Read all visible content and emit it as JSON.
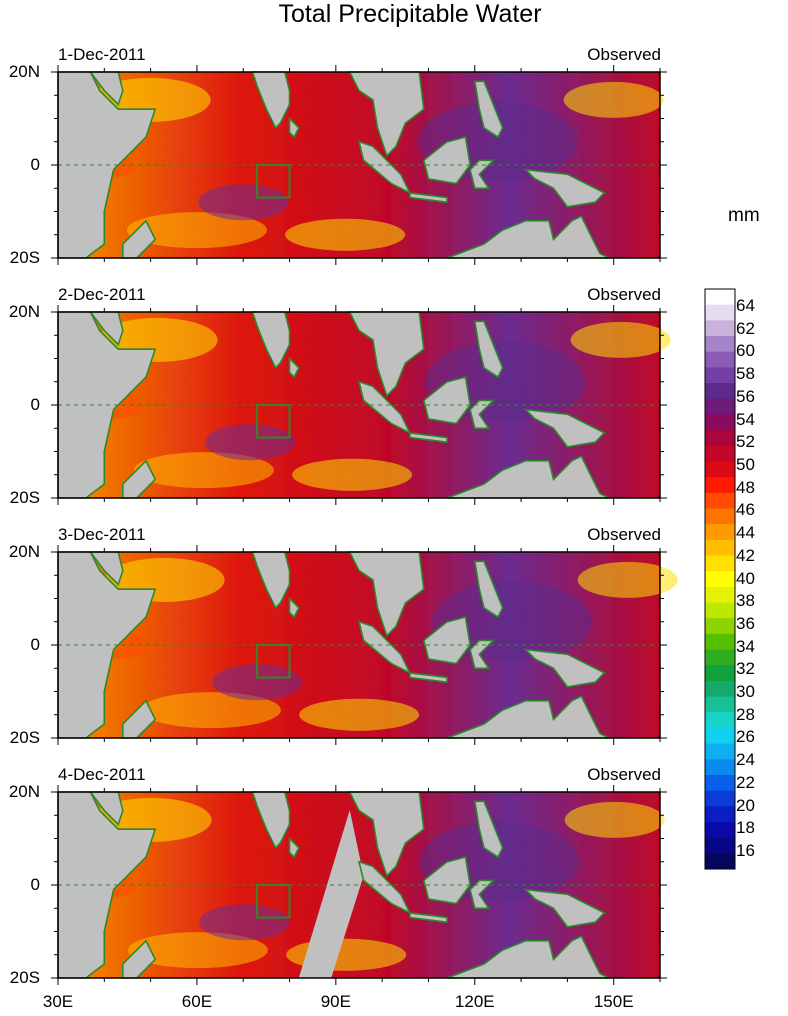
{
  "title": "Total Precipitable Water",
  "units": "mm",
  "panels": [
    {
      "date": "1-Dec-2011",
      "source": "Observed"
    },
    {
      "date": "2-Dec-2011",
      "source": "Observed"
    },
    {
      "date": "3-Dec-2011",
      "source": "Observed"
    },
    {
      "date": "4-Dec-2011",
      "source": "Observed"
    }
  ],
  "lat_labels": [
    "20N",
    "0",
    "20S"
  ],
  "lon_labels": [
    "30E",
    "60E",
    "90E",
    "120E",
    "150E"
  ],
  "lon_range": [
    30,
    160
  ],
  "lat_range": [
    -20,
    20
  ],
  "colorbar": {
    "labels": [
      "64",
      "62",
      "60",
      "58",
      "56",
      "54",
      "52",
      "50",
      "48",
      "46",
      "44",
      "42",
      "40",
      "38",
      "36",
      "34",
      "32",
      "30",
      "28",
      "26",
      "24",
      "22",
      "20",
      "18",
      "16"
    ],
    "colors": [
      "#ffffff",
      "#e6def0",
      "#c9b3dc",
      "#a585c8",
      "#8a5cb4",
      "#7440a6",
      "#5c2a8a",
      "#6e1a7a",
      "#8a0a5e",
      "#a8063c",
      "#c4062a",
      "#dc0a14",
      "#ff1a00",
      "#ff4a00",
      "#ff7400",
      "#ff9a00",
      "#ffbe00",
      "#ffe000",
      "#ffff00",
      "#e6f000",
      "#bde800",
      "#8ed400",
      "#55bf00",
      "#30ad1e",
      "#10a03c",
      "#14aa6a",
      "#18c098",
      "#18d4c8",
      "#10d0ef",
      "#10b0f0",
      "#0a8af0",
      "#0860e8",
      "#0a3cd8",
      "#0a1ec4",
      "#0a0aa8",
      "#080886",
      "#060660"
    ]
  }
}
